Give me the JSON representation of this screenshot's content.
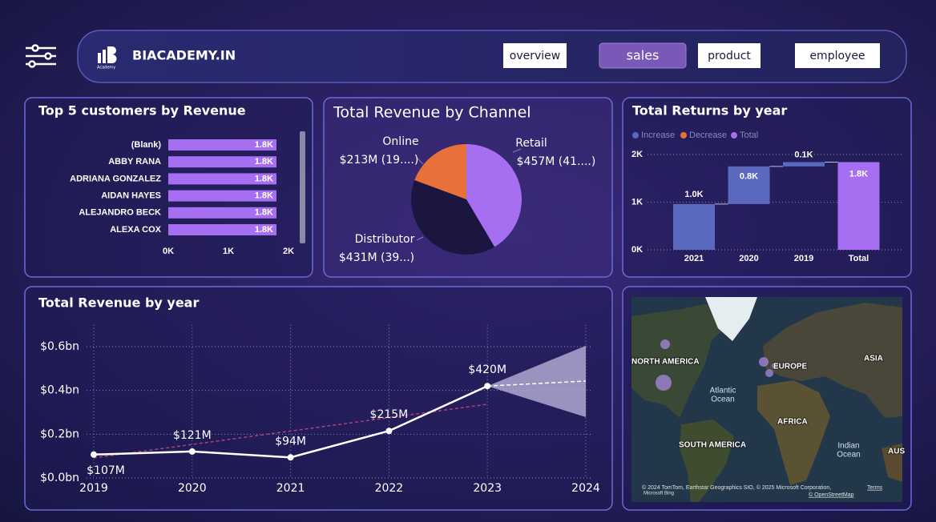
{
  "header": {
    "brand": "BIACADEMY.IN",
    "logo_caption": "Academy",
    "nav": [
      "overview",
      "sales",
      "product",
      "employee"
    ],
    "active_nav": 1
  },
  "chart_data": [
    {
      "type": "bar",
      "orientation": "horizontal",
      "title": "Top 5 customers by Revenue",
      "categories": [
        "(Blank)",
        "ABBY RANA",
        "ADRIANA GONZALEZ",
        "AIDAN HAYES",
        "ALEJANDRO BECK",
        "ALEXA COX"
      ],
      "values": [
        1800,
        1800,
        1800,
        1800,
        1800,
        1800
      ],
      "value_labels": [
        "1.8K",
        "1.8K",
        "1.8K",
        "1.8K",
        "1.8K",
        "1.8K"
      ],
      "color": "#a66ef0",
      "xlim": [
        0,
        2000
      ],
      "xticks": [
        {
          "value": 0,
          "label": "0K"
        },
        {
          "value": 1000,
          "label": "1K"
        },
        {
          "value": 2000,
          "label": "2K"
        }
      ],
      "grid": false
    },
    {
      "type": "pie",
      "title": "Total Revenue by Channel",
      "categories": [
        "Retail",
        "Distributor",
        "Online"
      ],
      "values": [
        457,
        431,
        213
      ],
      "value_labels": [
        "$457M (41....)",
        "$431M (39...)",
        "$213M (19....)"
      ],
      "colors": [
        "#a66ef0",
        "#1a1640",
        "#e8703a"
      ]
    },
    {
      "type": "waterfall",
      "title": "Total Returns by year",
      "legend": [
        {
          "name": "Increase",
          "color": "#5b6abf"
        },
        {
          "name": "Decrease",
          "color": "#e8703a"
        },
        {
          "name": "Total",
          "color": "#a66ef0"
        }
      ],
      "categories": [
        "2021",
        "2020",
        "2019",
        "Total"
      ],
      "measures": [
        "Increase",
        "Increase",
        "Increase",
        "Total"
      ],
      "values": [
        960,
        790,
        90,
        1840
      ],
      "value_labels": [
        "1.0K",
        "0.8K",
        "0.1K",
        "1.8K"
      ],
      "ylim": [
        0,
        2100
      ],
      "yticks": [
        {
          "value": 0,
          "label": "0K"
        },
        {
          "value": 1000,
          "label": "1K"
        },
        {
          "value": 2000,
          "label": "2K"
        }
      ],
      "grid": true
    },
    {
      "type": "line",
      "title": "Total Revenue by year",
      "categories": [
        "2019",
        "2020",
        "2021",
        "2022",
        "2023",
        "2024"
      ],
      "values": [
        0.107,
        0.121,
        0.094,
        0.215,
        0.42,
        null
      ],
      "value_labels": [
        "$107M",
        "$121M",
        "$94M",
        "$215M",
        "$420M",
        null
      ],
      "color": "#ffffff",
      "trend": {
        "x": [
          "2019",
          "2023"
        ],
        "values": [
          0.092,
          0.337
        ],
        "color": "#b0407a"
      },
      "forecast": {
        "x": [
          "2023",
          "2024"
        ],
        "values": [
          0.42,
          0.443
        ],
        "upper": [
          0.42,
          0.604
        ],
        "lower": [
          0.42,
          0.278
        ],
        "color": "#b8b0d8"
      },
      "ylim": [
        0,
        0.7
      ],
      "yticks": [
        {
          "value": 0,
          "label": "$0.0bn"
        },
        {
          "value": 0.2,
          "label": "$0.2bn"
        },
        {
          "value": 0.4,
          "label": "$0.4bn"
        },
        {
          "value": 0.6,
          "label": "$0.6bn"
        }
      ],
      "grid": true
    }
  ],
  "map": {
    "labels": [
      "NORTH AMERICA",
      "EUROPE",
      "ASIA",
      "Atlantic",
      "Ocean",
      "AFRICA",
      "SOUTH AMERICA",
      "Indian",
      "Ocean",
      "AUS"
    ],
    "attribution": "© 2024 TomTom, Earthstar Geographics SIO, © 2025 Microsoft Corporation,",
    "terms": "Terms",
    "osm": "© OpenStreetMap",
    "provider": "Microsoft Bing"
  }
}
